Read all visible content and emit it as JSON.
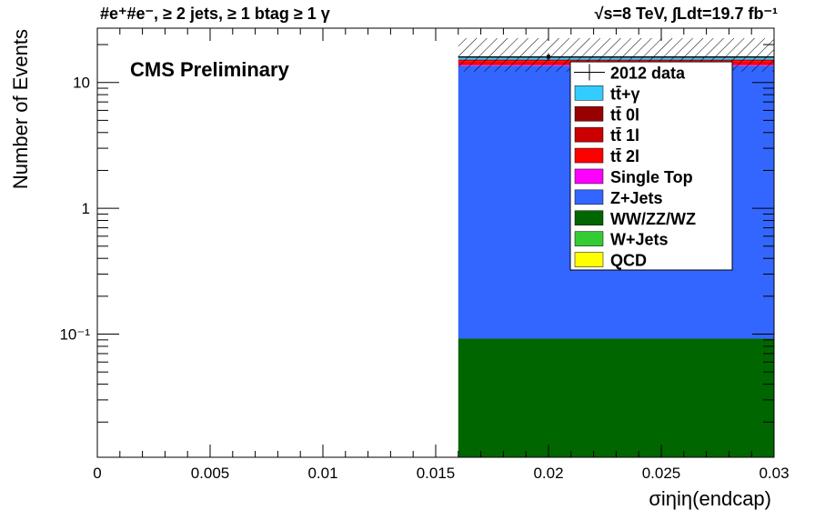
{
  "header": {
    "left_text": "#e⁺#e⁻, ≥ 2 jets, ≥ 1 btag ≥ 1 γ",
    "right_text": "√s=8 TeV,   ∫Ldt=19.7 fb⁻¹"
  },
  "chart_data": {
    "type": "bar",
    "subtype": "stacked-histogram",
    "title": "",
    "xlabel": "σiηiη(endcap)",
    "ylabel": "Number of Events",
    "xlim": [
      0,
      0.03
    ],
    "ylim": [
      0.0105,
      27
    ],
    "y_scale": "log",
    "x_ticks": [
      {
        "value": 0,
        "label": "0"
      },
      {
        "value": 0.005,
        "label": "0.005"
      },
      {
        "value": 0.01,
        "label": "0.01"
      },
      {
        "value": 0.015,
        "label": "0.015"
      },
      {
        "value": 0.02,
        "label": "0.02"
      },
      {
        "value": 0.025,
        "label": "0.025"
      },
      {
        "value": 0.03,
        "label": "0.03"
      }
    ],
    "y_ticks": [
      {
        "value": 0.1,
        "label": "10⁻¹"
      },
      {
        "value": 1,
        "label": "1"
      },
      {
        "value": 10,
        "label": "10"
      }
    ],
    "bins": [
      {
        "x_low": 0.016,
        "x_high": 0.03
      }
    ],
    "series": [
      {
        "name": "tt̄+γ",
        "color": "#33ccff",
        "values": [
          0.7
        ]
      },
      {
        "name": "tt̄ 0l",
        "color": "#990000",
        "values": [
          0
        ]
      },
      {
        "name": "tt̄ 1l",
        "color": "#cc0000",
        "values": [
          0.4
        ]
      },
      {
        "name": "tt̄ 2l",
        "color": "#ff0000",
        "values": [
          1.0
        ]
      },
      {
        "name": "Single Top",
        "color": "#ff00ff",
        "values": [
          0.2
        ]
      },
      {
        "name": "Z+Jets",
        "color": "#3366ff",
        "values": [
          13.5
        ]
      },
      {
        "name": "WW/ZZ/WZ",
        "color": "#006600",
        "values": [
          0.092
        ]
      },
      {
        "name": "W+Jets",
        "color": "#33cc33",
        "values": [
          0
        ]
      },
      {
        "name": "QCD",
        "color": "#ffff00",
        "values": [
          0
        ]
      }
    ],
    "data_points": [
      {
        "name": "2012 data",
        "x": 0.02,
        "y": 16.0,
        "xerr_low": 0.016,
        "xerr_high": 0.03
      }
    ],
    "uncertainty_band": {
      "low": [
        12.2
      ],
      "high": [
        22.5
      ]
    },
    "legend": {
      "placement": "top-right",
      "entries": [
        {
          "label": "2012 data",
          "style": "marker"
        },
        {
          "label": "tt̄+γ",
          "color": "#33ccff"
        },
        {
          "label": "tt̄ 0l",
          "color": "#990000"
        },
        {
          "label": "tt̄ 1l",
          "color": "#cc0000"
        },
        {
          "label": "tt̄ 2l",
          "color": "#ff0000"
        },
        {
          "label": "Single Top",
          "color": "#ff00ff"
        },
        {
          "label": "Z+Jets",
          "color": "#3366ff"
        },
        {
          "label": "WW/ZZ/WZ",
          "color": "#006600"
        },
        {
          "label": "W+Jets",
          "color": "#33cc33"
        },
        {
          "label": "QCD",
          "color": "#ffff00"
        }
      ]
    },
    "annotations": [
      "CMS Preliminary"
    ]
  }
}
